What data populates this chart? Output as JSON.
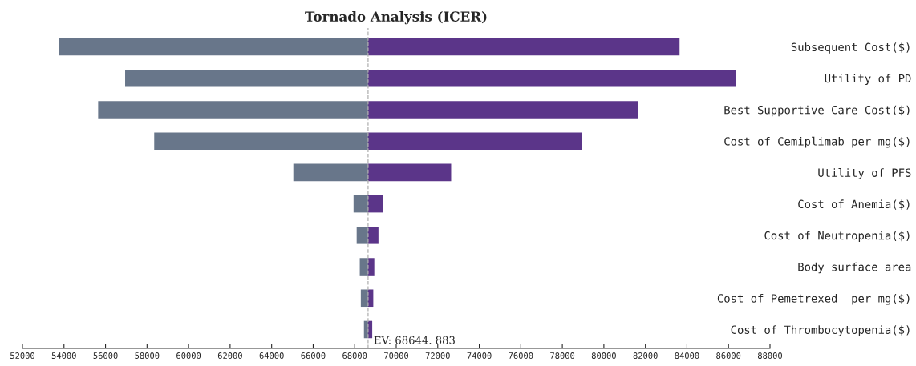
{
  "chart_data": {
    "type": "bar",
    "title": "Tornado Analysis (ICER)",
    "orientation": "horizontal",
    "stacked": false,
    "categories": [
      "Subsequent Cost($)",
      "Utility of PD",
      "Best Supportive Care Cost($)",
      "Cost of Cemiplimab per mg($)",
      "Utility of PFS",
      "Cost of Anemia($)",
      "Cost of Neutropenia($)",
      "Body surface area",
      "Cost of Pemetrexed  per mg($)",
      "Cost of Thrombocytopenia($)"
    ],
    "series": [
      {
        "color": "#68768a",
        "base": [
          68644.883,
          68644.883,
          68644.883,
          68644.883,
          68644.883,
          68644.883,
          68644.883,
          68644.883,
          68644.883,
          68644.883
        ],
        "values": [
          -14900,
          -11700,
          -13000,
          -10300,
          -3600,
          -700,
          -550,
          -400,
          -350,
          -200
        ]
      },
      {
        "color": "#5b3589",
        "base": [
          68644.883,
          68644.883,
          68644.883,
          68644.883,
          68644.883,
          68644.883,
          68644.883,
          68644.883,
          68644.883,
          68644.883
        ],
        "values": [
          15000,
          17700,
          13000,
          10300,
          4000,
          700,
          500,
          300,
          250,
          200
        ]
      }
    ],
    "xlim": [
      52000,
      88000
    ],
    "xticks": [
      52000,
      54000,
      56000,
      58000,
      60000,
      62000,
      64000,
      66000,
      68000,
      70000,
      72000,
      74000,
      76000,
      78000,
      80000,
      82000,
      84000,
      86000,
      88000
    ],
    "ref_lines": [
      {
        "axis": "x",
        "value": 68644.883,
        "color": "#b0b0b0",
        "line_style": "dashed"
      }
    ],
    "annotations": [
      "EV: 68644. 883"
    ],
    "grid": false,
    "legend": false
  }
}
